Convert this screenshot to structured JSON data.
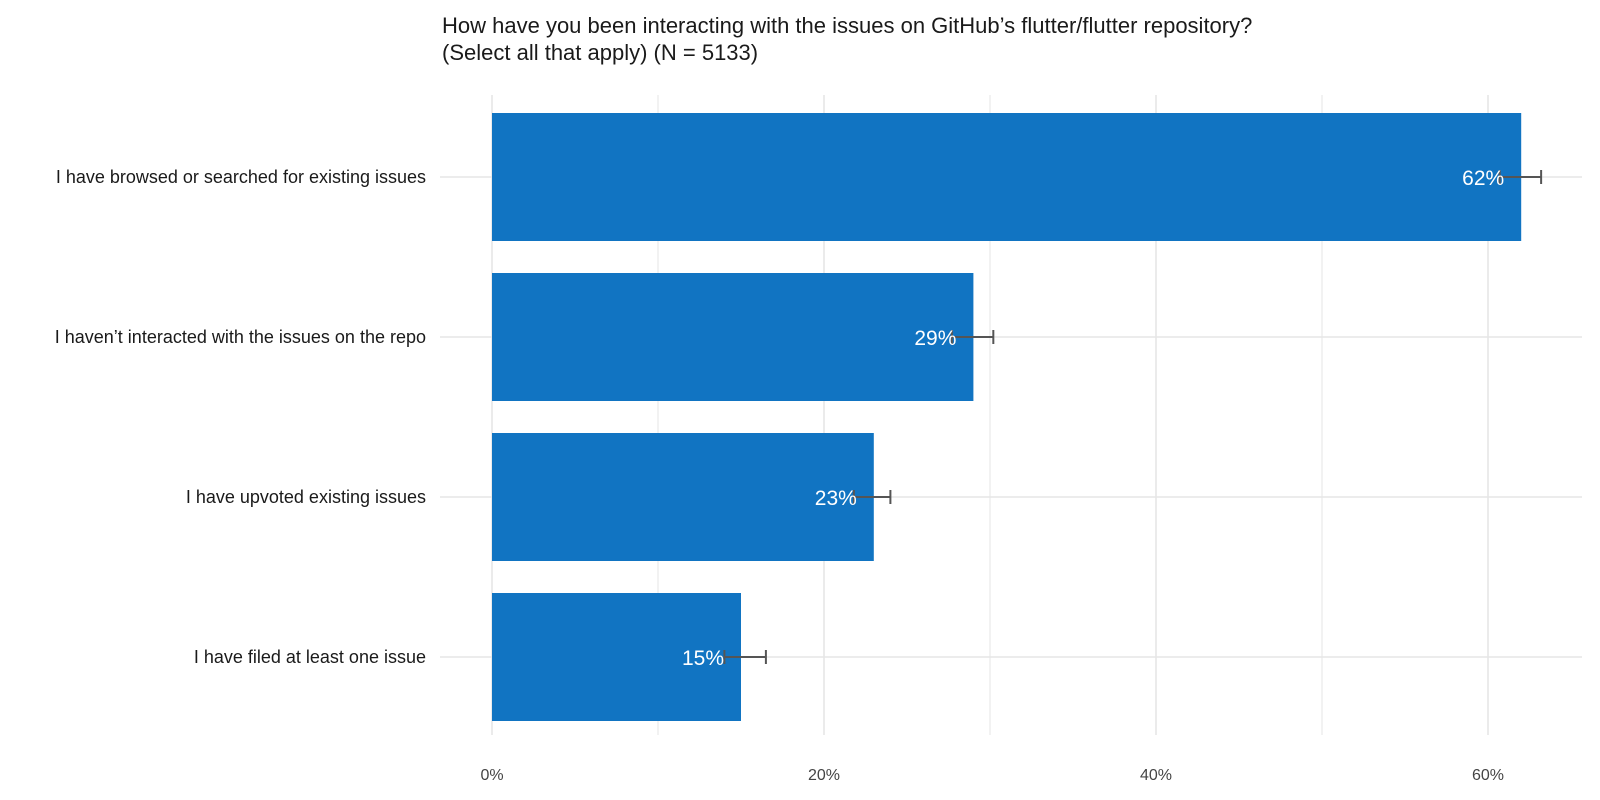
{
  "chart_data": {
    "type": "bar",
    "orientation": "horizontal",
    "title": "How have you been interacting with the issues on GitHub’s flutter/flutter repository?",
    "subtitle": "(Select all that apply) (N = 5133)",
    "xlabel": "",
    "ylabel": "",
    "xlim": [
      0,
      65
    ],
    "x_ticks": [
      0,
      20,
      40,
      60
    ],
    "x_tick_labels": [
      "0%",
      "20%",
      "40%",
      "60%"
    ],
    "grid": true,
    "legend": "none",
    "categories": [
      "I have browsed or searched for existing issues",
      "I haven’t interacted with the issues on the repo",
      "I have upvoted existing issues",
      "I have filed at least one issue"
    ],
    "values": [
      62,
      29,
      23,
      15
    ],
    "value_labels": [
      "62%",
      "29%",
      "23%",
      "15%"
    ],
    "error_low": [
      60.7,
      27.7,
      21.8,
      14.0
    ],
    "error_high": [
      63.2,
      30.2,
      24.0,
      16.5
    ],
    "colors": {
      "bar": "#1174c2",
      "grid": "#e6e6e6",
      "error_bar": "#555555"
    }
  }
}
